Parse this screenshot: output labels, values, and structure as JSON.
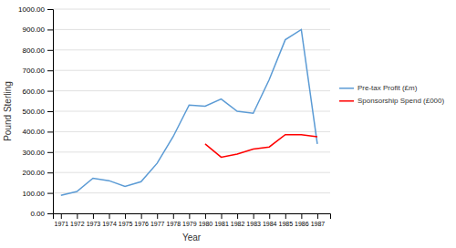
{
  "chart_data": {
    "type": "line",
    "x_label": "Year",
    "y_label": "Pound Sterling",
    "x": [
      1971,
      1972,
      1973,
      1974,
      1975,
      1976,
      1977,
      1978,
      1979,
      1980,
      1981,
      1982,
      1983,
      1984,
      1985,
      1986,
      1987
    ],
    "series": [
      {
        "name": "Pre-tax Profit (£m)",
        "color": "#5b9bd5",
        "values": [
          88,
          107,
          172,
          160,
          132,
          155,
          245,
          375,
          530,
          525,
          560,
          500,
          490,
          655,
          850,
          900,
          340
        ]
      },
      {
        "name": "Sponsorship Spend (£000)",
        "color": "#ff0000",
        "values": [
          null,
          null,
          null,
          null,
          null,
          null,
          null,
          null,
          null,
          340,
          275,
          290,
          315,
          325,
          385,
          385,
          375
        ]
      }
    ],
    "xlim": [
      1970.5,
      1987.8
    ],
    "xticks": [
      1971,
      1972,
      1973,
      1974,
      1975,
      1976,
      1977,
      1978,
      1979,
      1980,
      1981,
      1982,
      1983,
      1984,
      1985,
      1986,
      1987
    ],
    "ylim": [
      0,
      1000
    ],
    "yticks": [
      {
        "value": 0,
        "label": "0.00"
      },
      {
        "value": 100,
        "label": "100.00"
      },
      {
        "value": 200,
        "label": "200.00"
      },
      {
        "value": 300,
        "label": "300.00"
      },
      {
        "value": 400,
        "label": "400.00"
      },
      {
        "value": 500,
        "label": "500.00"
      },
      {
        "value": 600,
        "label": "600.00"
      },
      {
        "value": 700,
        "label": "700.00"
      },
      {
        "value": 800,
        "label": "800.00"
      },
      {
        "value": 900,
        "label": "900.00"
      },
      {
        "value": 1000,
        "label": "1000.00"
      }
    ],
    "grid": "y",
    "legend": "right"
  }
}
